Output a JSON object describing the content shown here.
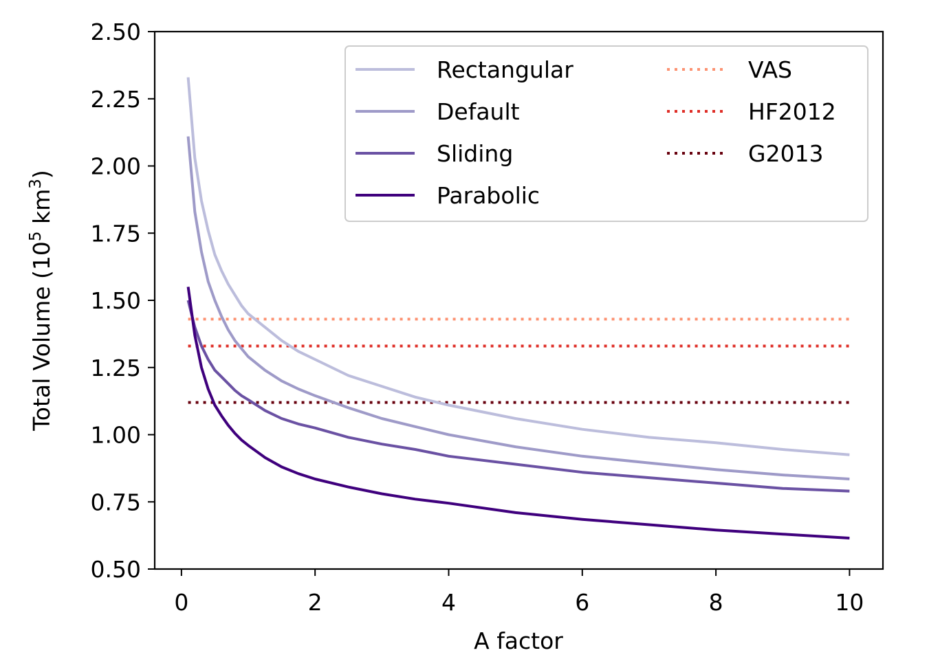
{
  "chart_data": {
    "type": "line",
    "title": "",
    "xlabel": "A factor",
    "ylabel": "Total Volume (10",
    "ylabel_sup1": "5",
    "ylabel_mid": " km",
    "ylabel_sup2": "3",
    "ylabel_end": ")",
    "xlim": [
      -0.4,
      10.5
    ],
    "ylim": [
      0.5,
      2.5
    ],
    "xticks": [
      0,
      2,
      4,
      6,
      8,
      10
    ],
    "xtick_labels": [
      "0",
      "2",
      "4",
      "6",
      "8",
      "10"
    ],
    "yticks": [
      0.5,
      0.75,
      1.0,
      1.25,
      1.5,
      1.75,
      2.0,
      2.25,
      2.5
    ],
    "ytick_labels": [
      "0.50",
      "0.75",
      "1.00",
      "1.25",
      "1.50",
      "1.75",
      "2.00",
      "2.25",
      "2.50"
    ],
    "grid": false,
    "legend_position": "top-right",
    "x": [
      0.1,
      0.2,
      0.3,
      0.4,
      0.5,
      0.6,
      0.7,
      0.8,
      0.9,
      1.0,
      1.25,
      1.5,
      1.75,
      2.0,
      2.5,
      3.0,
      3.5,
      4.0,
      5.0,
      6.0,
      7.0,
      8.0,
      9.0,
      10.0
    ],
    "series": [
      {
        "name": "Rectangular",
        "style": "solid",
        "color": "#bcbddc",
        "values": [
          2.33,
          2.03,
          1.87,
          1.76,
          1.67,
          1.61,
          1.56,
          1.52,
          1.48,
          1.45,
          1.4,
          1.35,
          1.31,
          1.28,
          1.22,
          1.18,
          1.14,
          1.11,
          1.06,
          1.02,
          0.99,
          0.97,
          0.945,
          0.925
        ]
      },
      {
        "name": "Default",
        "style": "solid",
        "color": "#9e9ac8",
        "values": [
          2.11,
          1.83,
          1.68,
          1.57,
          1.5,
          1.44,
          1.39,
          1.35,
          1.32,
          1.29,
          1.24,
          1.2,
          1.17,
          1.145,
          1.1,
          1.06,
          1.03,
          1.0,
          0.955,
          0.92,
          0.895,
          0.87,
          0.85,
          0.835
        ]
      },
      {
        "name": "Sliding",
        "style": "solid",
        "color": "#6a51a3",
        "values": [
          1.5,
          1.4,
          1.33,
          1.28,
          1.24,
          1.215,
          1.19,
          1.165,
          1.145,
          1.13,
          1.09,
          1.06,
          1.04,
          1.025,
          0.99,
          0.965,
          0.945,
          0.92,
          0.89,
          0.86,
          0.84,
          0.82,
          0.8,
          0.79
        ]
      },
      {
        "name": "Parabolic",
        "style": "solid",
        "color": "#3f007d",
        "values": [
          1.55,
          1.37,
          1.25,
          1.17,
          1.11,
          1.07,
          1.035,
          1.005,
          0.98,
          0.96,
          0.915,
          0.88,
          0.855,
          0.835,
          0.805,
          0.78,
          0.76,
          0.745,
          0.71,
          0.685,
          0.665,
          0.645,
          0.63,
          0.615
        ]
      },
      {
        "name": "VAS",
        "style": "dotted",
        "color": "#fc9272",
        "constant": 1.43
      },
      {
        "name": "HF2012",
        "style": "dotted",
        "color": "#de2d26",
        "constant": 1.33
      },
      {
        "name": "G2013",
        "style": "dotted",
        "color": "#67000d",
        "constant": 1.12
      }
    ]
  }
}
